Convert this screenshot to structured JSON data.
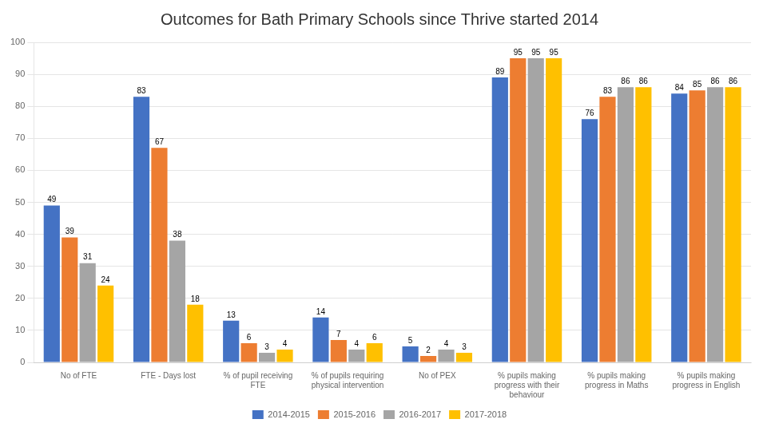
{
  "chart_data": {
    "type": "bar",
    "title": "Outcomes for Bath Primary Schools since Thrive started 2014",
    "categories": [
      "No of FTE",
      "FTE - Days lost",
      "% of pupil receiving\nFTE",
      "% of pupils requiring\nphysical intervention",
      "No of PEX",
      "% pupils making\nprogress with their\nbehaviour",
      "% pupils making\nprogress in Maths",
      "% pupils making\nprogress in English"
    ],
    "series": [
      {
        "name": "2014-2015",
        "color": "#4472C4",
        "values": [
          49,
          83,
          13,
          14,
          5,
          89,
          76,
          84
        ]
      },
      {
        "name": "2015-2016",
        "color": "#ED7D31",
        "values": [
          39,
          67,
          6,
          7,
          2,
          95,
          83,
          85
        ]
      },
      {
        "name": "2016-2017",
        "color": "#A5A5A5",
        "values": [
          31,
          38,
          3,
          4,
          4,
          95,
          86,
          86
        ]
      },
      {
        "name": "2017-2018",
        "color": "#FFC000",
        "values": [
          24,
          18,
          4,
          6,
          3,
          95,
          86,
          86
        ]
      }
    ],
    "ylim": [
      0,
      100
    ],
    "yticks": [
      0,
      10,
      20,
      30,
      40,
      50,
      60,
      70,
      80,
      90,
      100
    ],
    "grid": true,
    "legend": "bottom",
    "data_labels": true
  }
}
